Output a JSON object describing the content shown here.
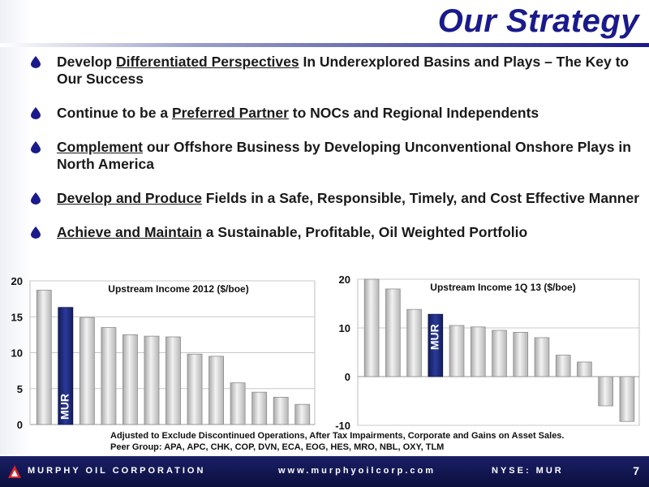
{
  "slide": {
    "title": "Our Strategy",
    "bullets": [
      {
        "pre": "Develop ",
        "ul": "Differentiated Perspectives",
        "post": " In Underexplored Basins and Plays – The Key to Our Success"
      },
      {
        "pre": "Continue to be a  ",
        "ul": "Preferred Partner",
        "post": " to NOCs and Regional Independents"
      },
      {
        "pre": "",
        "ul": "Complement",
        "post": " our Offshore Business by Developing Unconventional Onshore Plays in North America"
      },
      {
        "pre": "",
        "ul": "Develop and Produce",
        "post": " Fields in a Safe, Responsible, Timely, and Cost Effective Manner"
      },
      {
        "pre": "",
        "ul": "Achieve and Maintain",
        "post": " a Sustainable, Profitable, Oil Weighted Portfolio"
      }
    ],
    "footnote": {
      "line1": "Adjusted to Exclude Discontinued Operations, After Tax Impairments, Corporate and Gains on Asset Sales.",
      "line2": "Peer Group:  APA, APC, CHK, COP, DVN, ECA, EOG, HES, MRO, NBL, OXY, TLM"
    },
    "footer": {
      "company": "MURPHY OIL CORPORATION",
      "website": "www.murphyoilcorp.com",
      "ticker": "NYSE: MUR",
      "page_number": "7"
    },
    "colors": {
      "title": "#1a1a8c",
      "bullet": "#1a1a8c",
      "highlight_bar": "#1c2a80",
      "peer_bar": "#c8c8c8",
      "footer_bg": "#10154d"
    }
  },
  "chart_data": [
    {
      "type": "bar",
      "title": "Upstream Income 2012 ($/boe)",
      "ylim": [
        0,
        20
      ],
      "yticks": [
        0,
        5,
        10,
        15,
        20
      ],
      "grid": true,
      "highlight_label": "MUR",
      "highlight_index": 1,
      "values": [
        18.7,
        16.3,
        14.9,
        13.5,
        12.5,
        12.3,
        12.2,
        9.8,
        9.5,
        5.8,
        4.5,
        3.8,
        2.8
      ]
    },
    {
      "type": "bar",
      "title": "Upstream Income 1Q 13 ($/boe)",
      "ylim": [
        -10,
        20
      ],
      "yticks": [
        -10,
        0,
        10,
        20
      ],
      "grid": true,
      "highlight_label": "MUR",
      "highlight_index": 3,
      "values": [
        20.0,
        18.0,
        13.8,
        12.8,
        10.5,
        10.2,
        9.5,
        9.1,
        8.0,
        4.4,
        3.0,
        -6.0,
        -9.2
      ]
    }
  ]
}
